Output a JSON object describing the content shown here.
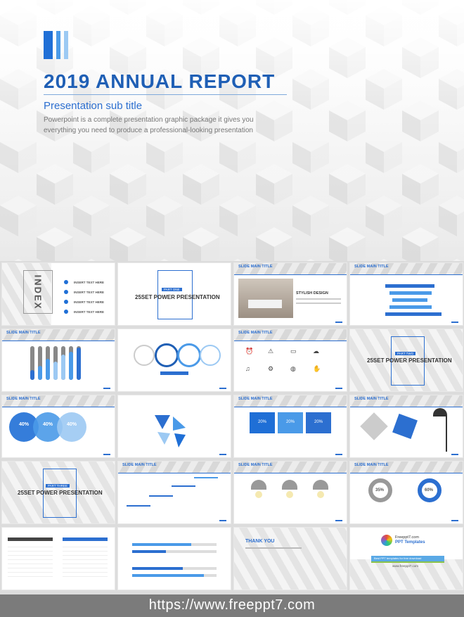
{
  "cover": {
    "title": "2019 ANNUAL REPORT",
    "subtitle": "Presentation sub title",
    "description": "Powerpoint is a complete presentation graphic package it gives you everything you need to produce a professional-looking presentation"
  },
  "thumbnails": {
    "index_word": "INDEX",
    "index_items": [
      "INSERT TEXT HERE",
      "INSERT TEXT HERE",
      "INSERT TEXT HERE",
      "INSERT TEXT HERE"
    ],
    "slide_title": "SLIDE MAIN TITLE",
    "part_one": "PART ONE",
    "part_two": "PART TWO",
    "part_three": "PART THREE",
    "power_title_a": "25SET POWER PRESENTATION",
    "power_title_b": "25SET POWER PRESENTATION",
    "power_title_c": "25SET POWER PRESENTATION",
    "stylish": "STYLISH DESIGN",
    "pct_40": "40%",
    "pct_20": "20%",
    "pct_35": "35%",
    "pct_60": "60%",
    "thank_you": "THANK YOU",
    "brand_site": "Freeppt7.com",
    "brand_name": "PPT Templates",
    "brand_tag": "Best PPT templates for free download",
    "brand_url": "www.freeppt7.com"
  },
  "footer": {
    "url": "https://www.freeppt7.com"
  },
  "colors": {
    "accent": "#1f5fb5",
    "accent_light": "#4a9ae8",
    "footer_bg": "#7b7b7b"
  }
}
